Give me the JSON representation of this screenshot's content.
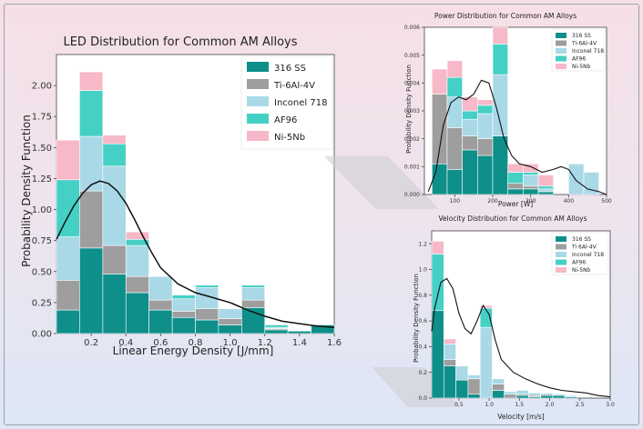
{
  "colors": {
    "ss316": "#0e8f8a",
    "ti64": "#9e9e9e",
    "in718": "#a9d9e6",
    "af96": "#45d0c6",
    "ni5nb": "#f7b8c8",
    "kde": "#111111"
  },
  "chart_data": [
    {
      "id": "led",
      "type": "bar",
      "title": "LED Distribution for Common AM Alloys",
      "xlabel": "Linear Energy Density [J/mm]",
      "ylabel": "Probability Density Function",
      "xlim": [
        0.0,
        1.6
      ],
      "ylim": [
        0,
        2.25
      ],
      "xticks": [
        0.2,
        0.4,
        0.6,
        0.8,
        1.0,
        1.2,
        1.4,
        1.6
      ],
      "xtick_labels": [
        "0.2",
        "0.4",
        "0.6",
        "0.8",
        "1.0",
        "1.2",
        "1.4",
        "1.6"
      ],
      "yticks": [
        0,
        0.25,
        0.5,
        0.75,
        1.0,
        1.25,
        1.5,
        1.75,
        2.0
      ],
      "ytick_labels": [
        "0.00",
        "0.25",
        "0.50",
        "0.75",
        "1.00",
        "1.25",
        "1.50",
        "1.75",
        "2.00"
      ],
      "legend_position": "top-right",
      "bin_edges": [
        0.0,
        0.133,
        0.267,
        0.4,
        0.533,
        0.667,
        0.8,
        0.933,
        1.067,
        1.2,
        1.333,
        1.467,
        1.6
      ],
      "series": [
        {
          "name": "316 SS",
          "values": [
            0.19,
            0.69,
            0.48,
            0.33,
            0.19,
            0.13,
            0.11,
            0.07,
            0.21,
            0.03,
            0.02,
            0.07
          ]
        },
        {
          "name": "Ti-6Al-4V",
          "values": [
            0.24,
            0.46,
            0.23,
            0.13,
            0.08,
            0.05,
            0.09,
            0.05,
            0.06,
            0.01,
            0.0,
            0.0
          ]
        },
        {
          "name": "Inconel 718",
          "values": [
            0.35,
            0.44,
            0.64,
            0.25,
            0.19,
            0.1,
            0.17,
            0.08,
            0.1,
            0.01,
            0.0,
            0.0
          ]
        },
        {
          "name": "AF96",
          "values": [
            0.46,
            0.37,
            0.18,
            0.05,
            0.0,
            0.03,
            0.02,
            0.0,
            0.02,
            0.02,
            0.0,
            0.0
          ]
        },
        {
          "name": "Ni-5Nb",
          "values": [
            0.32,
            0.15,
            0.07,
            0.06,
            0.0,
            0.0,
            0.0,
            0.0,
            0.0,
            0.0,
            0.0,
            0.0
          ]
        }
      ],
      "kde": {
        "x": [
          0.0,
          0.05,
          0.1,
          0.15,
          0.2,
          0.25,
          0.3,
          0.35,
          0.4,
          0.45,
          0.5,
          0.55,
          0.6,
          0.7,
          0.8,
          0.9,
          1.0,
          1.1,
          1.2,
          1.3,
          1.4,
          1.5,
          1.6
        ],
        "y": [
          0.76,
          0.9,
          1.03,
          1.13,
          1.2,
          1.23,
          1.21,
          1.15,
          1.05,
          0.92,
          0.78,
          0.65,
          0.53,
          0.4,
          0.33,
          0.29,
          0.25,
          0.19,
          0.14,
          0.1,
          0.08,
          0.06,
          0.05
        ]
      }
    },
    {
      "id": "power",
      "type": "bar",
      "title": "Power Distribution for Common AM Alloys",
      "xlabel": "Power [W]",
      "ylabel": "Probability Density Function",
      "xlim": [
        20,
        500
      ],
      "ylim": [
        0,
        0.006
      ],
      "xticks": [
        100,
        200,
        300,
        400,
        500
      ],
      "xtick_labels": [
        "100",
        "200",
        "300",
        "400",
        "500"
      ],
      "yticks": [
        0,
        0.001,
        0.002,
        0.003,
        0.004,
        0.005,
        0.006
      ],
      "ytick_labels": [
        "0.000",
        "0.001",
        "0.002",
        "0.003",
        "0.004",
        "0.005",
        "0.006"
      ],
      "legend_position": "top-right",
      "bin_edges": [
        40,
        80,
        120,
        160,
        200,
        240,
        280,
        320,
        360,
        400,
        440,
        480
      ],
      "series": [
        {
          "name": "316 SS",
          "values": [
            0.0011,
            0.0009,
            0.0016,
            0.0014,
            0.0021,
            0.0002,
            0.0002,
            0.0001,
            0.0,
            0.0,
            0.0
          ]
        },
        {
          "name": "Ti-6Al-4V",
          "values": [
            0.0025,
            0.0015,
            0.0005,
            0.0006,
            0.0,
            0.0002,
            0.0001,
            0.0,
            0.0,
            0.0,
            0.0
          ]
        },
        {
          "name": "Inconel 718",
          "values": [
            0.0,
            0.0011,
            0.0006,
            0.0009,
            0.0022,
            0.0,
            0.0004,
            0.0001,
            0.0,
            0.0011,
            0.0008
          ]
        },
        {
          "name": "AF96",
          "values": [
            0.0,
            0.0007,
            0.0003,
            0.0003,
            0.0011,
            0.0004,
            0.0001,
            0.0001,
            0.0,
            0.0,
            0.0
          ]
        },
        {
          "name": "Ni-5Nb",
          "values": [
            0.0009,
            0.0006,
            0.0005,
            0.0002,
            0.0006,
            0.0003,
            0.0003,
            0.0004,
            0.0,
            0.0,
            0.0
          ]
        }
      ],
      "kde": {
        "x": [
          30,
          50,
          70,
          90,
          110,
          130,
          150,
          170,
          190,
          210,
          230,
          250,
          270,
          300,
          330,
          360,
          380,
          400,
          420,
          450,
          480,
          500
        ],
        "y": [
          0.0001,
          0.0008,
          0.0025,
          0.0033,
          0.0035,
          0.0034,
          0.0036,
          0.0041,
          0.004,
          0.0031,
          0.002,
          0.0014,
          0.0011,
          0.001,
          0.0008,
          0.0009,
          0.001,
          0.0009,
          0.0005,
          0.0002,
          0.0001,
          0.0
        ]
      }
    },
    {
      "id": "velocity",
      "type": "bar",
      "title": "Velocity Distribution for Common AM Alloys",
      "xlabel": "Velocity [m/s]",
      "ylabel": "Probability Density Function",
      "xlim": [
        0.05,
        3.0
      ],
      "ylim": [
        0,
        1.3
      ],
      "xticks": [
        0.5,
        1.0,
        1.5,
        2.0,
        2.5,
        3.0
      ],
      "xtick_labels": [
        "0.5",
        "1.0",
        "1.5",
        "2.0",
        "2.5",
        "3.0"
      ],
      "yticks": [
        0,
        0.2,
        0.4,
        0.6,
        0.8,
        1.0,
        1.2
      ],
      "ytick_labels": [
        "0.0",
        "0.2",
        "0.4",
        "0.6",
        "0.8",
        "1.0",
        "1.2"
      ],
      "legend_position": "top-right",
      "bin_edges": [
        0.05,
        0.25,
        0.45,
        0.65,
        0.85,
        1.05,
        1.25,
        1.45,
        1.65,
        1.85,
        2.05,
        2.25,
        2.45
      ],
      "series": [
        {
          "name": "316 SS",
          "values": [
            0.68,
            0.25,
            0.14,
            0.03,
            0.0,
            0.06,
            0.0,
            0.02,
            0.01,
            0.02,
            0.02,
            0.01
          ]
        },
        {
          "name": "Ti 6Al-4V",
          "values": [
            0.0,
            0.05,
            0.0,
            0.12,
            0.0,
            0.05,
            0.03,
            0.01,
            0.01,
            0.01,
            0.0,
            0.0
          ]
        },
        {
          "name": "Inconel 718",
          "values": [
            0.0,
            0.12,
            0.11,
            0.03,
            0.55,
            0.04,
            0.02,
            0.03,
            0.02,
            0.01,
            0.01,
            0.01
          ]
        },
        {
          "name": "AF96",
          "values": [
            0.44,
            0.0,
            0.0,
            0.0,
            0.15,
            0.0,
            0.0,
            0.0,
            0.0,
            0.0,
            0.0,
            0.0
          ]
        },
        {
          "name": "Ni-5Nb",
          "values": [
            0.1,
            0.04,
            0.0,
            0.0,
            0.02,
            0.0,
            0.0,
            0.0,
            0.0,
            0.0,
            0.0,
            0.0
          ]
        }
      ],
      "kde": {
        "x": [
          0.05,
          0.1,
          0.2,
          0.3,
          0.4,
          0.5,
          0.6,
          0.7,
          0.8,
          0.9,
          1.0,
          1.1,
          1.2,
          1.4,
          1.6,
          1.8,
          2.0,
          2.2,
          2.4,
          2.6,
          2.8,
          3.0
        ],
        "y": [
          0.52,
          0.7,
          0.9,
          0.93,
          0.85,
          0.66,
          0.54,
          0.5,
          0.6,
          0.72,
          0.65,
          0.45,
          0.3,
          0.2,
          0.15,
          0.11,
          0.08,
          0.06,
          0.05,
          0.04,
          0.02,
          0.01
        ]
      }
    }
  ]
}
